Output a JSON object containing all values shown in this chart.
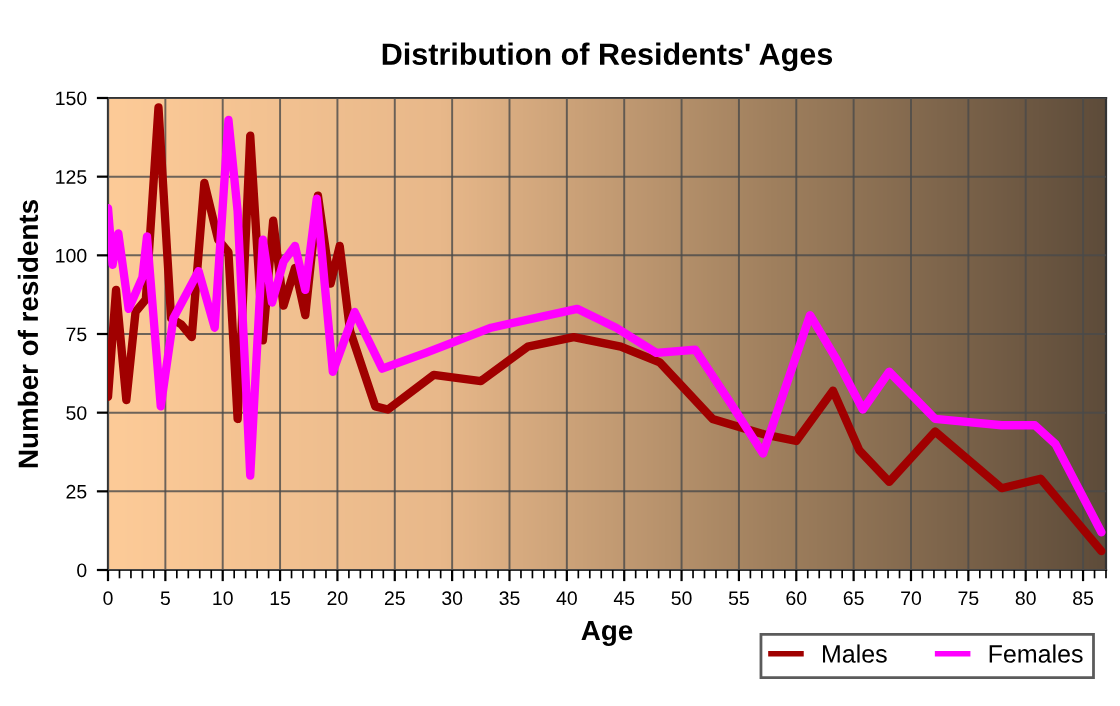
{
  "chart_data": {
    "type": "line",
    "title": "Distribution of Residents' Ages",
    "xlabel": "Age",
    "ylabel": "Number of residents",
    "xlim": [
      0,
      87
    ],
    "ylim": [
      0,
      150
    ],
    "xticks": [
      0,
      5,
      10,
      15,
      20,
      25,
      30,
      35,
      40,
      45,
      50,
      55,
      60,
      65,
      70,
      75,
      80,
      85
    ],
    "yticks": [
      0,
      25,
      50,
      75,
      100,
      125,
      150
    ],
    "grid": true,
    "legend": "bottom right",
    "line_style": "solid",
    "marker": "none",
    "series": [
      {
        "name": "Males",
        "color": "#a00000",
        "x": [
          0,
          0.7,
          1.6,
          2.4,
          3.3,
          4.4,
          5.5,
          6.4,
          7.3,
          8.4,
          9.6,
          10.5,
          11.3,
          12.4,
          13.5,
          14.4,
          15.3,
          16.3,
          17.2,
          18.3,
          19.4,
          20.2,
          21.1,
          23.3,
          24.4,
          28.4,
          32.5,
          36.6,
          40.6,
          44.7,
          48.1,
          52.7,
          57.3,
          60,
          63.2,
          65.5,
          68.1,
          72.1,
          77.9,
          81.3,
          86.6
        ],
        "values": [
          55,
          89,
          54,
          82,
          86,
          147,
          80,
          78,
          74,
          123,
          105,
          101,
          48,
          138,
          73,
          111,
          84,
          96,
          81,
          119,
          91,
          103,
          76,
          52,
          51,
          62,
          60,
          71,
          74,
          71,
          66,
          48,
          43,
          41,
          57,
          38,
          28,
          44,
          26,
          29,
          6
        ]
      },
      {
        "name": "Females",
        "color": "#ff00ff",
        "x": [
          0,
          0.4,
          0.9,
          1.8,
          3,
          3.4,
          4.6,
          5.7,
          7.9,
          9.3,
          10.5,
          11.3,
          12.4,
          13.5,
          14.3,
          15.3,
          16.3,
          17.2,
          18.2,
          19.6,
          21.5,
          23.9,
          27.7,
          33.4,
          40.9,
          44.3,
          47.8,
          51.2,
          54.1,
          57.1,
          61.2,
          63.5,
          65.8,
          68.1,
          72.1,
          77.9,
          80.8,
          82.6,
          86.6
        ],
        "values": [
          115,
          97,
          107,
          83,
          93,
          106,
          52,
          80,
          95,
          77,
          143,
          114,
          30,
          105,
          85,
          98,
          103,
          89,
          118,
          63,
          82,
          64,
          69,
          77,
          83,
          77,
          69,
          70,
          54,
          37,
          81,
          67,
          51,
          63,
          48,
          46,
          46,
          40,
          12
        ]
      }
    ]
  }
}
